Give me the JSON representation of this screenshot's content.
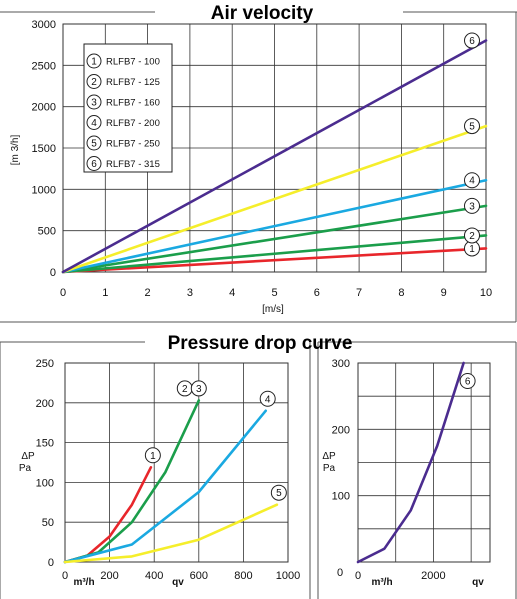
{
  "colors": {
    "red": "#e8262b",
    "green": "#1b9e4b",
    "blue": "#1aa9e1",
    "yellow": "#f5ee2b",
    "purple": "#4b2c8f"
  },
  "chart_data": [
    {
      "type": "line",
      "title": "Air velocity",
      "xlabel": "[m/s]",
      "ylabel": "[m 3/h]",
      "xlim": [
        0,
        10
      ],
      "ylim": [
        0,
        3000
      ],
      "xticks": [
        0,
        1,
        2,
        3,
        4,
        5,
        6,
        7,
        8,
        9,
        10
      ],
      "yticks": [
        0,
        500,
        1000,
        1500,
        2000,
        2500,
        3000
      ],
      "grid": true,
      "legend_position": "top-left",
      "legend_entries": [
        {
          "num": "1",
          "label": "RLFB7 - 100"
        },
        {
          "num": "2",
          "label": "RLFB7 - 125"
        },
        {
          "num": "3",
          "label": "RLFB7 - 160"
        },
        {
          "num": "4",
          "label": "RLFB7 - 200"
        },
        {
          "num": "5",
          "label": "RLFB7 - 250"
        },
        {
          "num": "6",
          "label": "RLFB7 - 315"
        }
      ],
      "series": [
        {
          "num": "1",
          "color": "#e8262b",
          "x": [
            0,
            10
          ],
          "y": [
            0,
            285
          ]
        },
        {
          "num": "2",
          "color": "#1b9e4b",
          "x": [
            0,
            10
          ],
          "y": [
            0,
            442
          ]
        },
        {
          "num": "3",
          "color": "#1b9e4b",
          "x": [
            0,
            10
          ],
          "y": [
            0,
            800
          ]
        },
        {
          "num": "4",
          "color": "#1aa9e1",
          "x": [
            0,
            10
          ],
          "y": [
            0,
            1110
          ]
        },
        {
          "num": "5",
          "color": "#f5ee2b",
          "x": [
            0,
            10
          ],
          "y": [
            0,
            1765
          ]
        },
        {
          "num": "6",
          "color": "#4b2c8f",
          "x": [
            0,
            10
          ],
          "y": [
            0,
            2800
          ]
        }
      ]
    },
    {
      "type": "line",
      "title": "Pressure drop curve",
      "ylabel_line1": "ΔP",
      "ylabel_line2": "Pa",
      "xlabel_unit": "m³/h",
      "xlabel_sym": "qv",
      "xlim": [
        0,
        1000
      ],
      "ylim": [
        0,
        250
      ],
      "xticks": [
        0,
        200,
        400,
        600,
        800,
        1000
      ],
      "yticks": [
        0,
        50,
        100,
        150,
        200,
        250
      ],
      "grid": true,
      "series": [
        {
          "num": "1",
          "color": "#e8262b",
          "x": [
            0,
            100,
            200,
            300,
            385
          ],
          "y": [
            0,
            8,
            32,
            72,
            119
          ]
        },
        {
          "num": "2 3",
          "color": "#1b9e4b",
          "x": [
            0,
            150,
            300,
            450,
            600
          ],
          "y": [
            0,
            12,
            50,
            113,
            203
          ]
        },
        {
          "num": "4",
          "color": "#1aa9e1",
          "x": [
            0,
            300,
            600,
            900
          ],
          "y": [
            0,
            22,
            88,
            190
          ]
        },
        {
          "num": "5",
          "color": "#f5ee2b",
          "x": [
            0,
            300,
            600,
            950
          ],
          "y": [
            0,
            7,
            28,
            72
          ]
        }
      ]
    },
    {
      "type": "line",
      "ylabel_line1": "ΔP",
      "ylabel_line2": "Pa",
      "xlabel_unit": "m³/h",
      "xlabel_sym": "qv",
      "xlim": [
        0,
        3500
      ],
      "ylim": [
        0,
        300
      ],
      "xticks": [
        0,
        2000
      ],
      "yticks": [
        100,
        200,
        300
      ],
      "grid": true,
      "series": [
        {
          "num": "6",
          "color": "#4b2c8f",
          "x": [
            0,
            700,
            1400,
            2100,
            2800
          ],
          "y": [
            0,
            20,
            78,
            175,
            300
          ]
        }
      ]
    }
  ]
}
